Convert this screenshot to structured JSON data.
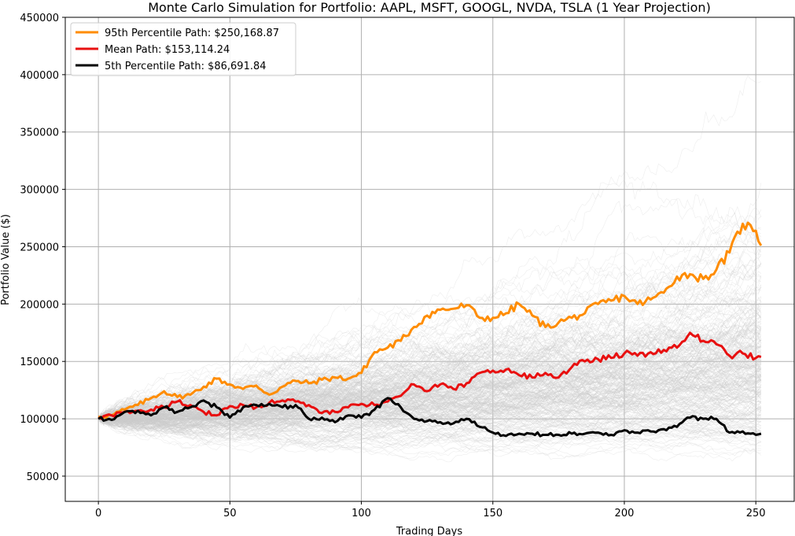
{
  "chart_data": {
    "type": "line",
    "title": "Monte Carlo Simulation for Portfolio: AAPL, MSFT, GOOGL, NVDA, TSLA (1 Year Projection)",
    "xlabel": "Trading Days",
    "ylabel": "Portfolio Value ($)",
    "xlim": [
      -12.6,
      264.6
    ],
    "ylim": [
      28000,
      450000
    ],
    "xticks": [
      0,
      50,
      100,
      150,
      200,
      250
    ],
    "yticks": [
      50000,
      100000,
      150000,
      200000,
      250000,
      300000,
      350000,
      400000,
      450000
    ],
    "grid": true,
    "legend_position": "upper-left",
    "background_paths": {
      "count": 300,
      "color": "#cccccc",
      "start_value": 100000,
      "days": 252,
      "description_range": "simulated paths mostly between 50000 and 430000"
    },
    "series": [
      {
        "name": "95th Percentile Path: $250,168.87",
        "color": "#ff8c00",
        "x": [
          0,
          5,
          10,
          15,
          20,
          25,
          30,
          35,
          40,
          45,
          50,
          55,
          60,
          65,
          70,
          75,
          80,
          85,
          90,
          95,
          100,
          105,
          110,
          115,
          120,
          125,
          130,
          135,
          140,
          145,
          150,
          155,
          160,
          165,
          170,
          175,
          180,
          185,
          190,
          195,
          200,
          205,
          210,
          215,
          220,
          225,
          230,
          235,
          240,
          245,
          250,
          252
        ],
        "values": [
          102000,
          103000,
          108000,
          112000,
          118000,
          124000,
          119000,
          121000,
          128000,
          135000,
          130000,
          126000,
          129000,
          121000,
          128000,
          133000,
          131000,
          134000,
          136000,
          135000,
          140000,
          158000,
          162000,
          168000,
          180000,
          190000,
          195000,
          196000,
          199000,
          188000,
          188000,
          192000,
          200000,
          190000,
          180000,
          184000,
          188000,
          192000,
          200000,
          203000,
          207000,
          200000,
          204000,
          210000,
          224000,
          226000,
          222000,
          230000,
          245000,
          270000,
          264000,
          251000
        ]
      },
      {
        "name": "Mean Path: $153,114.24",
        "color": "#e81010",
        "x": [
          0,
          5,
          10,
          15,
          20,
          25,
          30,
          35,
          40,
          45,
          50,
          55,
          60,
          65,
          70,
          75,
          80,
          85,
          90,
          95,
          100,
          105,
          110,
          115,
          120,
          125,
          130,
          135,
          140,
          145,
          150,
          155,
          160,
          165,
          170,
          175,
          180,
          185,
          190,
          195,
          200,
          205,
          210,
          215,
          220,
          225,
          230,
          235,
          240,
          245,
          250,
          252
        ],
        "values": [
          101000,
          103000,
          106000,
          107000,
          108000,
          110000,
          115000,
          112000,
          106000,
          103000,
          111000,
          112000,
          110000,
          114000,
          116000,
          115000,
          112000,
          105000,
          106000,
          110000,
          113000,
          112000,
          115000,
          120000,
          130000,
          124000,
          130000,
          126000,
          131000,
          140000,
          142000,
          143000,
          138000,
          136000,
          140000,
          136000,
          145000,
          150000,
          152000,
          153000,
          157000,
          155000,
          158000,
          160000,
          162000,
          175000,
          168000,
          165000,
          155000,
          157000,
          153000,
          154000
        ]
      },
      {
        "name": "5th Percentile Path: $86,691.84",
        "color": "#000000",
        "x": [
          0,
          5,
          10,
          15,
          20,
          25,
          30,
          35,
          40,
          45,
          50,
          55,
          60,
          65,
          70,
          75,
          80,
          85,
          90,
          95,
          100,
          105,
          110,
          115,
          120,
          125,
          130,
          135,
          140,
          145,
          150,
          155,
          160,
          165,
          170,
          175,
          180,
          185,
          190,
          195,
          200,
          205,
          210,
          215,
          220,
          225,
          230,
          235,
          240,
          245,
          250,
          252
        ],
        "values": [
          100000,
          99000,
          106000,
          107000,
          103000,
          110000,
          106000,
          110000,
          116000,
          110000,
          101000,
          110000,
          112000,
          113000,
          110000,
          112000,
          100000,
          101000,
          97000,
          103000,
          101000,
          108000,
          118000,
          110000,
          100000,
          98000,
          97000,
          96000,
          100000,
          93000,
          88000,
          85000,
          87000,
          87000,
          86000,
          86000,
          87000,
          87000,
          88000,
          86000,
          90000,
          88000,
          89000,
          91000,
          93000,
          101000,
          100000,
          100000,
          88000,
          89000,
          86000,
          87000
        ]
      }
    ]
  }
}
